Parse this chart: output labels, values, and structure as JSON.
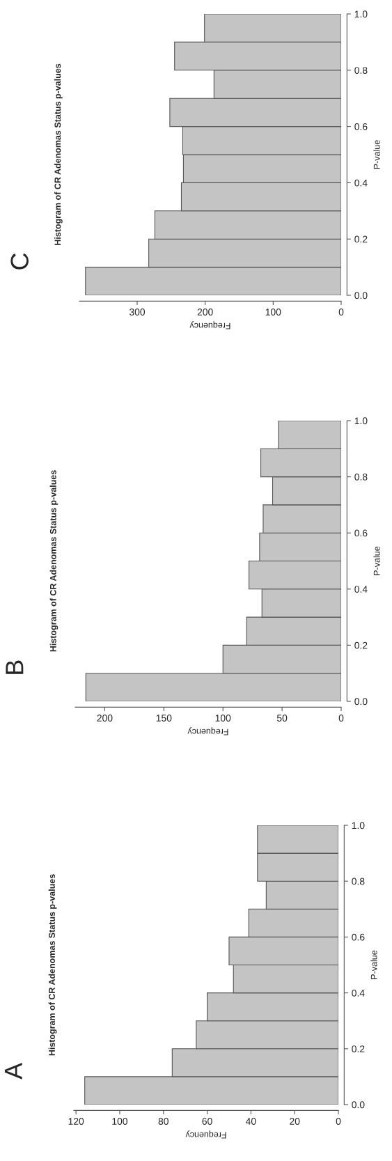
{
  "chart_data": [
    {
      "type": "histogram",
      "orientation": "horizontal",
      "title": "Histogram of CR Adenomas Status p-values",
      "xlabel": "Frequency",
      "ylabel": "P-value",
      "annotations": [
        "A"
      ],
      "color": "#c4c4c4",
      "bins": [
        0,
        0.1,
        0.2,
        0.3,
        0.4,
        0.5,
        0.6,
        0.7,
        0.8,
        0.9,
        1.0
      ],
      "values": [
        116,
        76,
        65,
        60,
        48,
        50,
        41,
        33,
        37,
        37
      ],
      "xlim": [
        121,
        0
      ],
      "xticks": [
        0,
        20,
        40,
        60,
        80,
        100,
        120
      ],
      "ylim": [
        0,
        1
      ],
      "yticks": [
        {
          "value": 0,
          "label": "0.0"
        },
        {
          "value": 0.2,
          "label": "0.2"
        },
        {
          "value": 0.4,
          "label": "0.4"
        },
        {
          "value": 0.6,
          "label": "0.6"
        },
        {
          "value": 0.8,
          "label": "0.8"
        },
        {
          "value": 1,
          "label": "1.0"
        }
      ],
      "grid": false
    },
    {
      "type": "histogram",
      "orientation": "horizontal",
      "title": "Histogram of CR Adenomas Status p-values",
      "xlabel": "Frequency",
      "ylabel": "P-value",
      "annotations": [
        "B"
      ],
      "color": "#c4c4c4",
      "bins": [
        0,
        0.1,
        0.2,
        0.3,
        0.4,
        0.5,
        0.6,
        0.7,
        0.8,
        0.9,
        1.0
      ],
      "values": [
        216,
        100,
        80,
        67,
        78,
        69,
        66,
        58,
        68,
        53
      ],
      "xlim": [
        225,
        0
      ],
      "xticks": [
        0,
        50,
        100,
        150,
        200
      ],
      "ylim": [
        0,
        1
      ],
      "yticks": [
        {
          "value": 0,
          "label": "0.0"
        },
        {
          "value": 0.2,
          "label": "0.2"
        },
        {
          "value": 0.4,
          "label": "0.4"
        },
        {
          "value": 0.6,
          "label": "0.6"
        },
        {
          "value": 0.8,
          "label": "0.8"
        },
        {
          "value": 1,
          "label": "1.0"
        }
      ],
      "grid": false
    },
    {
      "type": "histogram",
      "orientation": "horizontal",
      "title": "Histogram of CR Adenomas Status p-values",
      "xlabel": "Frequency",
      "ylabel": "P-value",
      "annotations": [
        "C"
      ],
      "color": "#c4c4c4",
      "bins": [
        0,
        0.1,
        0.2,
        0.3,
        0.4,
        0.5,
        0.6,
        0.7,
        0.8,
        0.9,
        1.0
      ],
      "values": [
        376,
        283,
        274,
        235,
        232,
        233,
        252,
        187,
        245,
        201
      ],
      "xlim": [
        385,
        0
      ],
      "xticks": [
        0,
        100,
        200,
        300
      ],
      "ylim": [
        0,
        1
      ],
      "yticks": [
        {
          "value": 0,
          "label": "0.0"
        },
        {
          "value": 0.2,
          "label": "0.2"
        },
        {
          "value": 0.4,
          "label": "0.4"
        },
        {
          "value": 0.6,
          "label": "0.6"
        },
        {
          "value": 0.8,
          "label": "0.8"
        },
        {
          "value": 1,
          "label": "1.0"
        }
      ],
      "grid": false
    }
  ]
}
